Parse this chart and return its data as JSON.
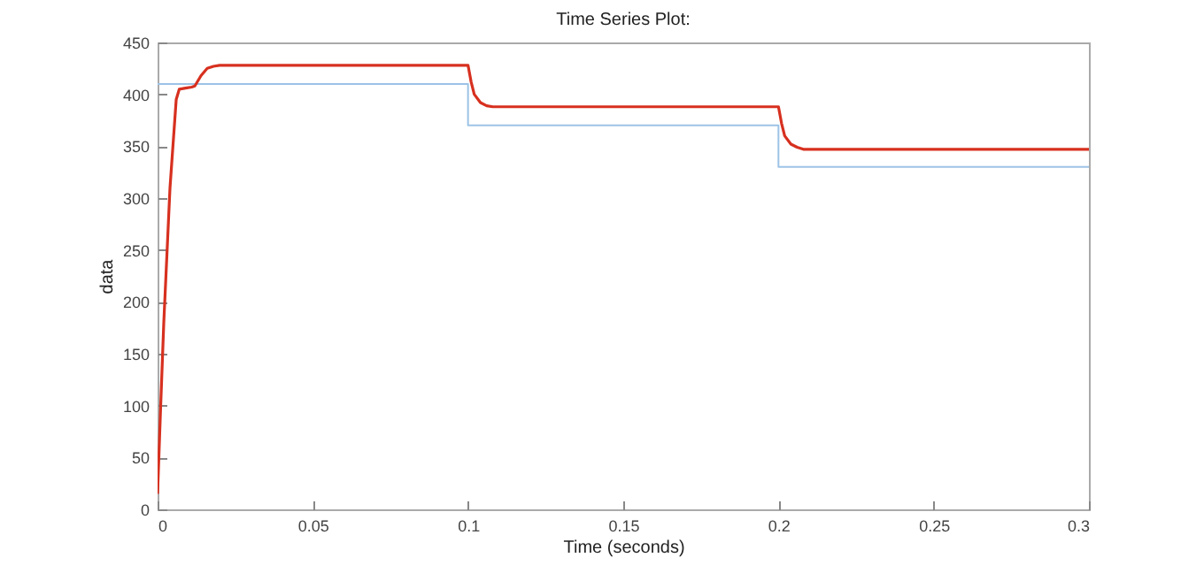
{
  "chart_data": {
    "type": "line",
    "title": "Time Series Plot:",
    "xlabel": "Time (seconds)",
    "ylabel": "data",
    "xlim": [
      0,
      0.3
    ],
    "xticks": [
      0,
      0.05,
      0.1,
      0.15,
      0.2,
      0.25,
      0.3
    ],
    "ylim": [
      0,
      450
    ],
    "yticks": [
      0,
      50,
      100,
      150,
      200,
      250,
      300,
      350,
      400,
      450
    ],
    "grid": false,
    "series": [
      {
        "type": "step",
        "color": "#9dc3e6",
        "x": [
          0,
          0.1,
          0.2,
          0.3
        ],
        "values": [
          410,
          370,
          330,
          330
        ]
      },
      {
        "type": "line",
        "color": "#d7301f",
        "x": [
          0,
          0.001,
          0.002,
          0.004,
          0.006,
          0.007,
          0.009,
          0.011,
          0.012,
          0.014,
          0.016,
          0.018,
          0.02,
          0.1,
          0.101,
          0.102,
          0.104,
          0.106,
          0.108,
          0.11,
          0.2,
          0.201,
          0.202,
          0.204,
          0.206,
          0.208,
          0.21,
          0.3
        ],
        "values": [
          15,
          100,
          180,
          310,
          395,
          405,
          406,
          407,
          408,
          418,
          425,
          427,
          428,
          428,
          412,
          400,
          392,
          389,
          388,
          388,
          388,
          372,
          360,
          352,
          349,
          347,
          347,
          347
        ]
      }
    ]
  }
}
